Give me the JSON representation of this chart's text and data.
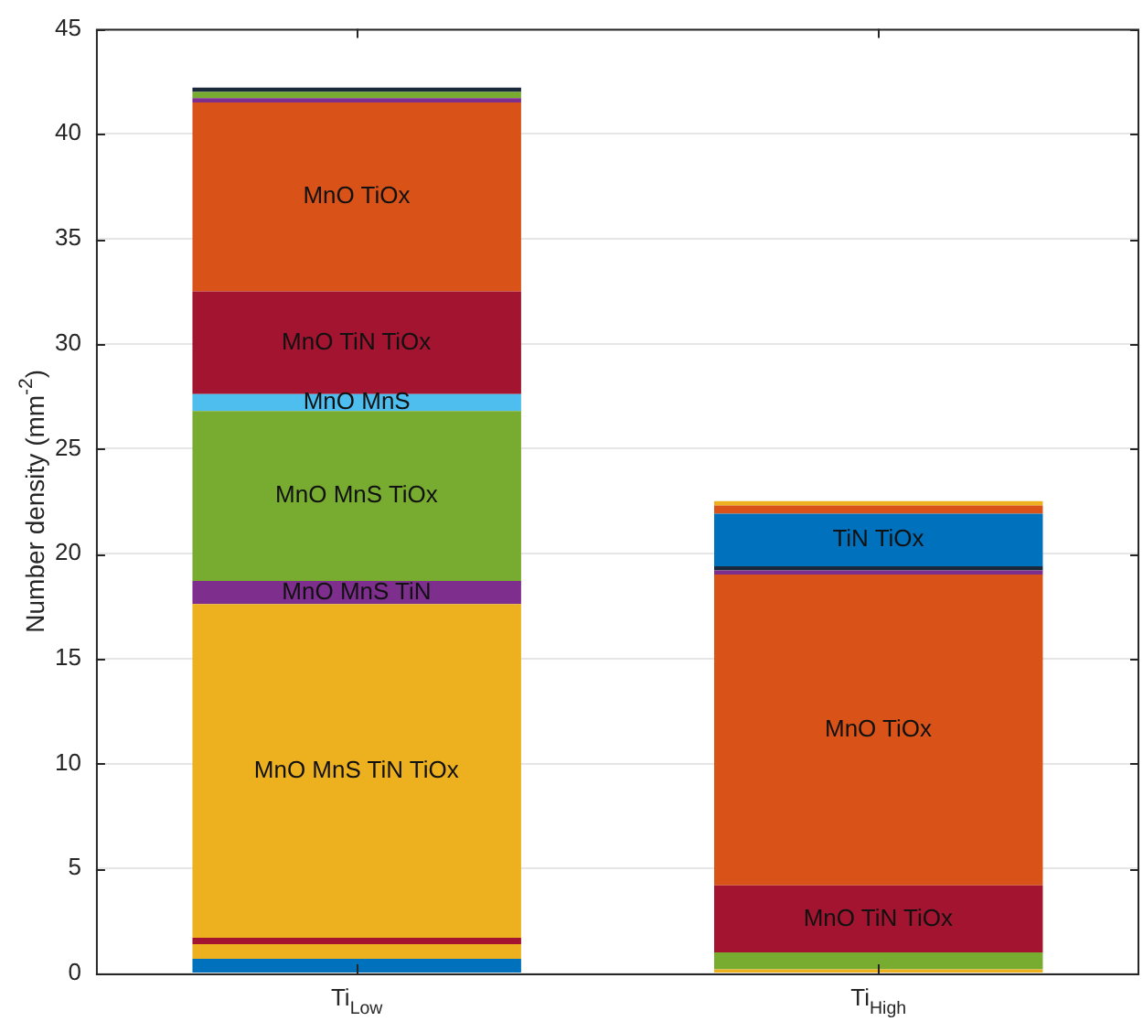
{
  "chart_data": {
    "type": "bar",
    "stacked": true,
    "ylabel": "Number density (mm$^{-2}$)",
    "categories": [
      "Ti$_{Low}$",
      "Ti$_{High}$"
    ],
    "ylim": [
      0,
      45
    ],
    "yticks": [
      0,
      5,
      10,
      15,
      20,
      25,
      30,
      35,
      40,
      45
    ],
    "grid": "y",
    "legend": false,
    "series": [
      {
        "color": "#0072bd",
        "values": [
          0.7,
          null
        ]
      },
      {
        "color": "#edb120",
        "values": [
          0.7,
          0.2
        ]
      },
      {
        "color": "#a2142f",
        "values": [
          0.3,
          null
        ]
      },
      {
        "name": "MnO MnS TiN TiOx",
        "color": "#edb120",
        "values": [
          15.9,
          null
        ]
      },
      {
        "name": "MnO MnS TiN",
        "color": "#7e2f8e",
        "values": [
          1.1,
          null
        ]
      },
      {
        "name": "MnO MnS TiOx",
        "color": "#77ac30",
        "values": [
          8.1,
          null
        ]
      },
      {
        "color": "#77ac30",
        "values": [
          null,
          0.8
        ]
      },
      {
        "name": "MnO MnS",
        "color": "#4dbeee",
        "values": [
          0.8,
          null
        ]
      },
      {
        "name": "MnO TiN TiOx",
        "color": "#a2142f",
        "values": [
          4.9,
          3.2
        ]
      },
      {
        "name": "MnO TiOx",
        "color": "#d95319",
        "values": [
          9.0,
          14.8
        ]
      },
      {
        "color": "#7e2f8e",
        "values": [
          0.2,
          0.2
        ]
      },
      {
        "color": "#77ac30",
        "values": [
          0.3,
          null
        ]
      },
      {
        "color": "#1a2a3a",
        "values": [
          0.2,
          0.2
        ]
      },
      {
        "name": "TiN TiOx",
        "color": "#0072bd",
        "values": [
          null,
          2.5
        ]
      },
      {
        "color": "#d95319",
        "values": [
          null,
          0.4
        ]
      },
      {
        "color": "#edb120",
        "values": [
          null,
          0.2
        ]
      }
    ]
  }
}
